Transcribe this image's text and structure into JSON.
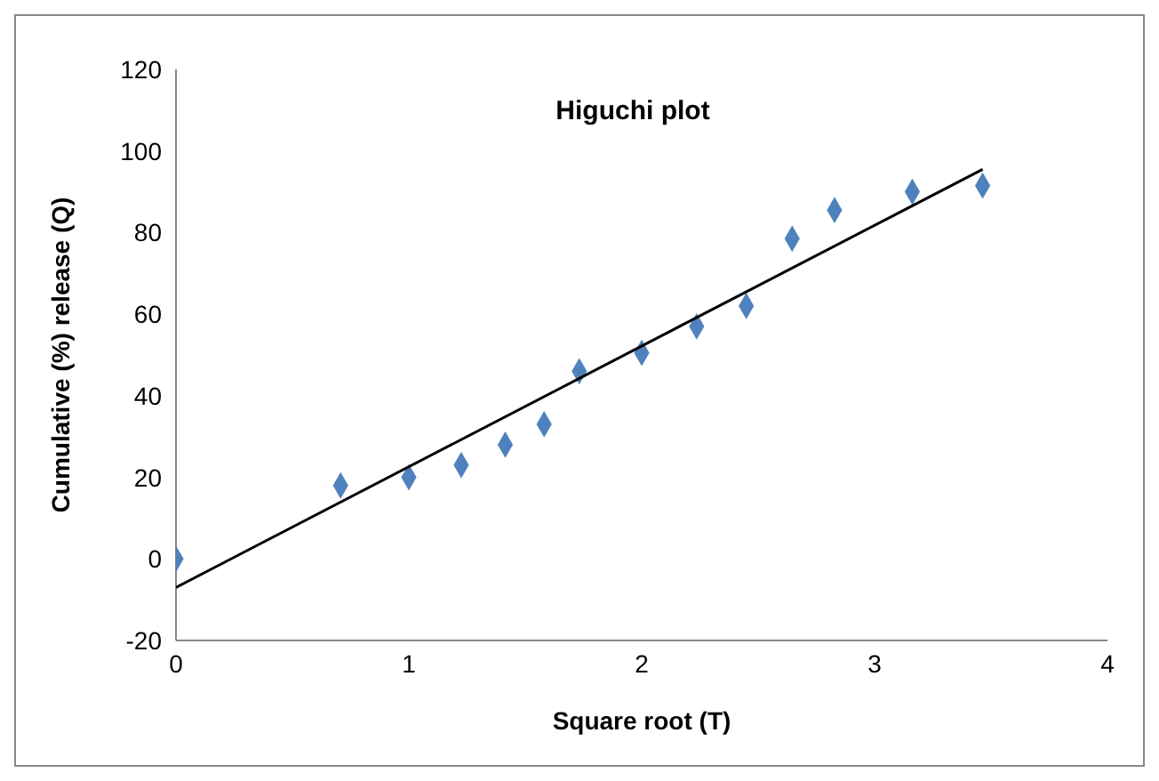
{
  "chart_data": {
    "type": "scatter",
    "title": "Higuchi plot",
    "xlabel": "Square  root (T)",
    "ylabel": "Cumulative (%) release (Q)",
    "xlim": [
      0,
      4
    ],
    "xticks": [
      0,
      1,
      2,
      3,
      4
    ],
    "ylim": [
      -20,
      120
    ],
    "yticks": [
      -20,
      0,
      20,
      40,
      60,
      80,
      100,
      120
    ],
    "grid": false,
    "series": [
      {
        "marker": "diamond",
        "color": "#4f81bd",
        "x": [
          0,
          0.707,
          1,
          1.225,
          1.414,
          1.581,
          1.732,
          2,
          2.236,
          2.449,
          2.646,
          2.828,
          3.162,
          3.464
        ],
        "values": [
          0,
          18,
          20,
          23,
          28,
          33,
          46,
          50.5,
          57,
          62,
          78.5,
          85.5,
          90,
          91.5
        ]
      },
      {
        "type": "line",
        "marker": "none",
        "color": "#000000",
        "x": [
          0,
          3.464
        ],
        "values": [
          -7,
          95.5
        ]
      }
    ]
  }
}
